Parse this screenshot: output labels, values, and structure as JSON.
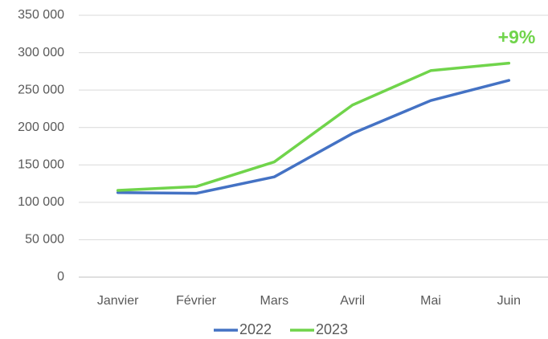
{
  "chart_data": {
    "type": "line",
    "categories": [
      "Janvier",
      "Février",
      "Mars",
      "Avril",
      "Mai",
      "Juin"
    ],
    "series": [
      {
        "name": "2022",
        "color": "#4472c4",
        "values": [
          113000,
          112000,
          134000,
          192000,
          236000,
          263000
        ]
      },
      {
        "name": "2023",
        "color": "#70d44b",
        "values": [
          116000,
          121000,
          154000,
          230000,
          276000,
          286000
        ]
      }
    ],
    "annotation": "+9%",
    "ylim": [
      0,
      350000
    ],
    "yticks": [
      0,
      {
        "value": 50000,
        "label": "50 000"
      },
      {
        "value": 100000,
        "label": "100 000"
      },
      {
        "value": 150000,
        "label": "150 000"
      },
      {
        "value": 200000,
        "label": "200 000"
      },
      {
        "value": 250000,
        "label": "250 000"
      },
      {
        "value": 300000,
        "label": "300 000"
      },
      {
        "value": 350000,
        "label": "350 000"
      }
    ],
    "grid": true,
    "legend": "bottom"
  }
}
